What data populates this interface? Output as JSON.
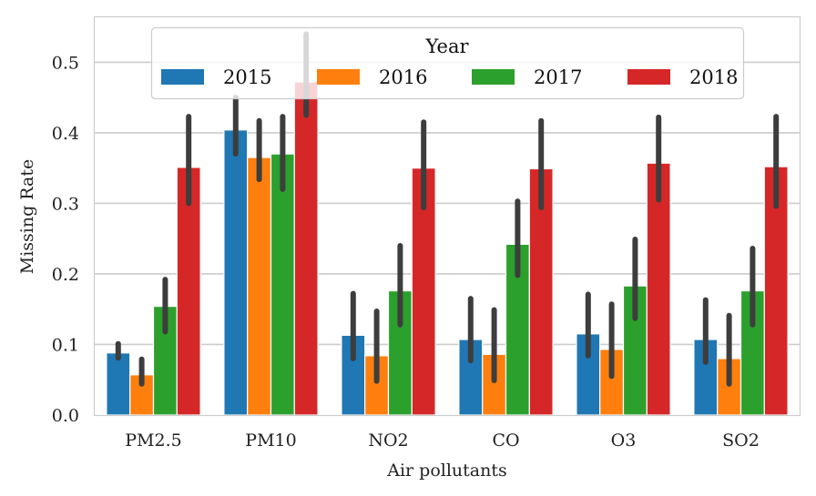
{
  "chart_data": {
    "type": "bar",
    "title": "",
    "xlabel": "Air pollutants",
    "ylabel": "Missing Rate",
    "ylim": [
      0,
      0.565
    ],
    "yticks": [
      0.0,
      0.1,
      0.2,
      0.3,
      0.4,
      0.5
    ],
    "ytick_labels": [
      "0.0",
      "0.1",
      "0.2",
      "0.3",
      "0.4",
      "0.5"
    ],
    "grid": true,
    "categories": [
      "PM2.5",
      "PM10",
      "NO2",
      "CO",
      "O3",
      "SO2"
    ],
    "legend": {
      "title": "Year",
      "placement": "top-center"
    },
    "series": [
      {
        "name": "2015",
        "color": "#1f77b4",
        "values": [
          0.088,
          0.404,
          0.113,
          0.107,
          0.115,
          0.107
        ],
        "err_low": [
          0.081,
          0.37,
          0.08,
          0.077,
          0.084,
          0.075
        ],
        "err_high": [
          0.101,
          0.45,
          0.172,
          0.165,
          0.171,
          0.163
        ]
      },
      {
        "name": "2016",
        "color": "#ff7f0e",
        "values": [
          0.057,
          0.365,
          0.084,
          0.086,
          0.093,
          0.08
        ],
        "err_low": [
          0.044,
          0.334,
          0.048,
          0.049,
          0.055,
          0.044
        ],
        "err_high": [
          0.079,
          0.417,
          0.147,
          0.149,
          0.157,
          0.141
        ]
      },
      {
        "name": "2017",
        "color": "#2ca02c",
        "values": [
          0.154,
          0.37,
          0.176,
          0.242,
          0.183,
          0.176
        ],
        "err_low": [
          0.118,
          0.32,
          0.128,
          0.198,
          0.137,
          0.128
        ],
        "err_high": [
          0.192,
          0.423,
          0.24,
          0.303,
          0.249,
          0.236
        ]
      },
      {
        "name": "2018",
        "color": "#d62728",
        "values": [
          0.351,
          0.472,
          0.35,
          0.349,
          0.357,
          0.352
        ],
        "err_low": [
          0.3,
          0.425,
          0.294,
          0.294,
          0.305,
          0.296
        ],
        "err_high": [
          0.423,
          0.54,
          0.415,
          0.417,
          0.422,
          0.423
        ]
      }
    ]
  }
}
